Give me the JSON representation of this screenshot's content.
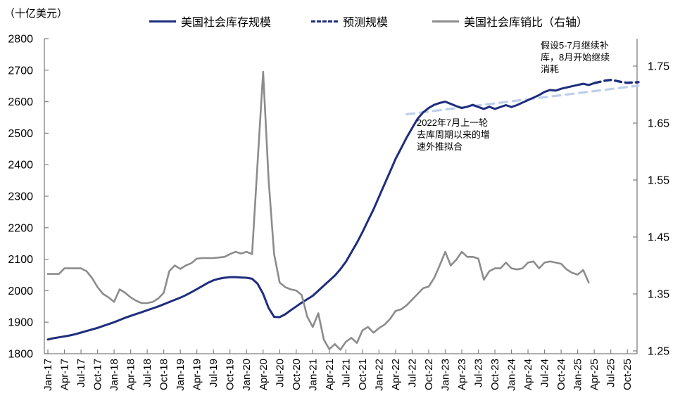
{
  "unit_label": "（十亿美元）",
  "legend": {
    "items": [
      {
        "label": "美国社会库存规模",
        "color": "#1F2D7E",
        "style": "solid"
      },
      {
        "label": "预测规模",
        "color": "#1F2D7E",
        "style": "dashed"
      },
      {
        "label": "美国社会库销比（右轴）",
        "color": "#8C8C8C",
        "style": "solid"
      }
    ]
  },
  "chart_data": {
    "type": "line",
    "title": "",
    "ylabel_left": "（十亿美元）",
    "grid": false,
    "legend_position": "top",
    "x_unit": "month",
    "x_start": "Jan-17",
    "x_tick_labels": [
      "Jan-17",
      "Apr-17",
      "Jul-17",
      "Oct-17",
      "Jan-18",
      "Apr-18",
      "Jul-18",
      "Oct-18",
      "Jan-19",
      "Apr-19",
      "Jul-19",
      "Oct-19",
      "Jan-20",
      "Apr-20",
      "Jul-20",
      "Oct-20",
      "Jan-21",
      "Apr-21",
      "Jul-21",
      "Oct-21",
      "Jan-22",
      "Apr-22",
      "Jul-22",
      "Oct-22",
      "Jan-23",
      "Apr-23",
      "Jul-23",
      "Oct-23",
      "Jan-24",
      "Apr-24",
      "Jul-24",
      "Oct-24",
      "Jan-25",
      "Apr-25",
      "Jul-25",
      "Oct-25"
    ],
    "left_axis": {
      "min": 1800,
      "max": 2800,
      "step": 100
    },
    "right_axis": {
      "min": 1.25,
      "max": 1.75,
      "ticks": [
        1.25,
        1.35,
        1.45,
        1.55,
        1.65,
        1.75
      ]
    },
    "series": [
      {
        "name": "美国社会库存规模",
        "axis": "left",
        "color": "#1F2D7E",
        "style": "solid",
        "width": 3,
        "start_month_index": 0,
        "values": [
          1845,
          1849,
          1852,
          1855,
          1858,
          1862,
          1867,
          1872,
          1877,
          1882,
          1888,
          1894,
          1900,
          1907,
          1914,
          1920,
          1926,
          1932,
          1938,
          1944,
          1950,
          1957,
          1964,
          1971,
          1978,
          1986,
          1995,
          2005,
          2015,
          2025,
          2033,
          2038,
          2041,
          2043,
          2043,
          2042,
          2041,
          2038,
          2022,
          1990,
          1945,
          1917,
          1916,
          1925,
          1938,
          1950,
          1962,
          1973,
          1984,
          2000,
          2016,
          2032,
          2048,
          2068,
          2092,
          2122,
          2152,
          2186,
          2222,
          2258,
          2298,
          2338,
          2378,
          2418,
          2452,
          2486,
          2516,
          2546,
          2566,
          2580,
          2590,
          2596,
          2600,
          2593,
          2586,
          2580,
          2584,
          2590,
          2583,
          2577,
          2584,
          2577,
          2583,
          2589,
          2583,
          2589,
          2597,
          2605,
          2613,
          2621,
          2631,
          2637,
          2635,
          2641,
          2645,
          2649,
          2653,
          2657,
          2653,
          2659
        ]
      },
      {
        "name": "预测规模",
        "axis": "left",
        "color": "#1F2D7E",
        "style": "dashed",
        "width": 3.4,
        "start_month_index": 99,
        "values": [
          2659,
          2663,
          2667,
          2669,
          2666,
          2662,
          2660,
          2661,
          2662
        ]
      },
      {
        "name": "美国社会库销比（右轴）",
        "axis": "right",
        "color": "#8C8C8C",
        "style": "solid",
        "width": 2.6,
        "start_month_index": 0,
        "values": [
          1.385,
          1.385,
          1.385,
          1.395,
          1.395,
          1.395,
          1.395,
          1.39,
          1.378,
          1.362,
          1.35,
          1.344,
          1.336,
          1.358,
          1.352,
          1.344,
          1.338,
          1.334,
          1.334,
          1.336,
          1.342,
          1.352,
          1.39,
          1.4,
          1.394,
          1.4,
          1.404,
          1.412,
          1.413,
          1.413,
          1.413,
          1.414,
          1.415,
          1.42,
          1.424,
          1.421,
          1.424,
          1.42,
          1.58,
          1.74,
          1.55,
          1.42,
          1.37,
          1.362,
          1.358,
          1.356,
          1.348,
          1.31,
          1.292,
          1.316,
          1.27,
          1.253,
          1.262,
          1.252,
          1.266,
          1.273,
          1.264,
          1.286,
          1.292,
          1.282,
          1.29,
          1.296,
          1.306,
          1.32,
          1.323,
          1.33,
          1.34,
          1.35,
          1.36,
          1.363,
          1.378,
          1.4,
          1.424,
          1.4,
          1.41,
          1.424,
          1.415,
          1.415,
          1.412,
          1.375,
          1.39,
          1.395,
          1.395,
          1.405,
          1.395,
          1.393,
          1.395,
          1.405,
          1.407,
          1.395,
          1.405,
          1.407,
          1.405,
          1.403,
          1.393,
          1.387,
          1.384,
          1.392,
          1.37
        ]
      },
      {
        "name": "趋势外推拟合线",
        "axis": "left",
        "color": "#BCCFEA",
        "style": "dashed-long",
        "width": 3.2,
        "month_indexes": [
          65,
          107
        ],
        "values": [
          2560,
          2651
        ]
      }
    ],
    "annotations": [
      {
        "text": "假设5-7月继续补库，8月开始继续消耗"
      },
      {
        "text": "2022年7月上一轮去库周期以来的增速外推拟合"
      }
    ]
  }
}
